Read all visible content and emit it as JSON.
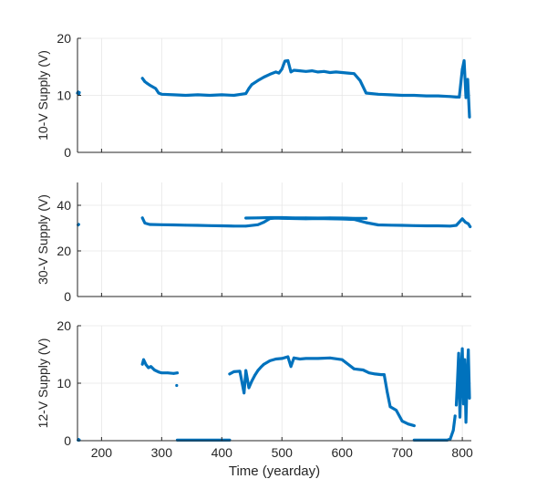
{
  "colors": {
    "series": "#0072BD",
    "axis": "#262626",
    "grid": "#e6e6e6",
    "background": "#ffffff"
  },
  "chart_data": [
    {
      "type": "scatter",
      "ylabel": "10-V Supply (V)",
      "xlabel": "",
      "xlim": [
        160,
        815
      ],
      "ylim": [
        0,
        20
      ],
      "xticks": [
        200,
        300,
        400,
        500,
        600,
        700,
        800
      ],
      "xtick_labels_visible": false,
      "yticks": [
        0,
        10,
        20
      ],
      "grid": true,
      "series": [
        {
          "x": [
            160,
            161,
            162,
            163
          ],
          "y": [
            10.4,
            10.6,
            10.2,
            10.5
          ]
        },
        {
          "x": [
            268,
            272,
            276,
            280,
            285,
            290,
            295,
            300,
            320,
            340,
            360,
            380,
            400,
            420,
            440,
            445,
            450,
            460,
            470,
            480,
            490,
            495,
            500,
            505,
            510,
            515,
            520,
            530,
            540,
            550,
            560,
            570,
            580,
            590,
            600,
            610,
            620,
            630,
            640,
            660,
            680,
            700,
            720,
            740,
            760,
            780,
            790,
            795,
            800,
            803,
            806,
            809,
            812
          ],
          "y": [
            13.0,
            12.4,
            12.1,
            11.8,
            11.5,
            11.2,
            10.4,
            10.2,
            10.1,
            10.0,
            10.1,
            10.0,
            10.1,
            10.0,
            10.3,
            11.2,
            11.9,
            12.6,
            13.2,
            13.7,
            14.1,
            13.9,
            14.6,
            16.0,
            16.1,
            14.1,
            14.4,
            14.3,
            14.2,
            14.3,
            14.1,
            14.2,
            14.0,
            14.1,
            14.0,
            13.9,
            13.8,
            12.6,
            10.4,
            10.2,
            10.1,
            10.0,
            10.0,
            9.9,
            9.9,
            9.8,
            9.7,
            9.7,
            14.6,
            16.1,
            9.6,
            12.8,
            6.2
          ]
        }
      ]
    },
    {
      "type": "scatter",
      "ylabel": "30-V Supply (V)",
      "xlabel": "",
      "xlim": [
        160,
        815
      ],
      "ylim": [
        0,
        50
      ],
      "xticks": [
        200,
        300,
        400,
        500,
        600,
        700,
        800
      ],
      "xtick_labels_visible": false,
      "yticks": [
        0,
        20,
        40
      ],
      "grid": true,
      "series": [
        {
          "x": [
            161,
            162
          ],
          "y": [
            31.4,
            31.6
          ]
        },
        {
          "x": [
            268,
            272,
            280,
            300,
            320,
            340,
            360,
            380,
            400,
            420,
            440,
            460,
            470,
            480,
            490,
            500,
            520,
            540,
            560,
            580,
            600,
            620,
            640,
            660,
            680,
            700,
            720,
            740,
            760,
            780,
            790,
            800,
            805,
            810,
            813
          ],
          "y": [
            34.5,
            32.2,
            31.6,
            31.5,
            31.4,
            31.3,
            31.2,
            31.1,
            31.0,
            30.9,
            30.9,
            31.5,
            32.6,
            34.2,
            34.4,
            34.3,
            34.2,
            34.1,
            34.2,
            34.1,
            34.0,
            33.8,
            32.4,
            31.4,
            31.3,
            31.2,
            31.1,
            31.0,
            31.0,
            30.9,
            31.2,
            34.1,
            32.6,
            31.9,
            30.6
          ]
        },
        {
          "x": [
            440,
            460,
            480,
            500,
            520,
            540,
            560,
            580,
            600,
            620,
            640
          ],
          "y": [
            34.4,
            34.5,
            34.6,
            34.6,
            34.5,
            34.5,
            34.4,
            34.5,
            34.4,
            34.3,
            34.3
          ]
        }
      ]
    },
    {
      "type": "scatter",
      "ylabel": "12-V Supply (V)",
      "xlabel": "Time (yearday)",
      "xlim": [
        160,
        815
      ],
      "ylim": [
        0,
        20
      ],
      "xticks": [
        200,
        300,
        400,
        500,
        600,
        700,
        800
      ],
      "xtick_labels_visible": true,
      "yticks": [
        0,
        10,
        20
      ],
      "grid": true,
      "series": [
        {
          "x": [
            161,
            162,
            163
          ],
          "y": [
            0.1,
            0.2,
            0.1
          ]
        },
        {
          "x": [
            268,
            270,
            274,
            278,
            282,
            288,
            292,
            296,
            300,
            310,
            320,
            326
          ],
          "y": [
            13.3,
            14.1,
            13.2,
            12.7,
            12.9,
            12.3,
            12.1,
            11.9,
            11.8,
            11.8,
            11.7,
            11.8
          ]
        },
        {
          "x": [
            325
          ],
          "y": [
            9.6
          ]
        },
        {
          "x": [
            326,
            340,
            360,
            380,
            400,
            413
          ],
          "y": [
            0.1,
            0.1,
            0.1,
            0.1,
            0.1,
            0.1
          ]
        },
        {
          "x": [
            413,
            420,
            430,
            437,
            440,
            445,
            450,
            455,
            460,
            465,
            470,
            480,
            490,
            500,
            510,
            515,
            520,
            530,
            540,
            560,
            580,
            600,
            620,
            635,
            645,
            655,
            665,
            670,
            675,
            680,
            690,
            700,
            710,
            720
          ],
          "y": [
            11.6,
            12.0,
            12.1,
            8.3,
            12.2,
            9.2,
            10.4,
            11.4,
            12.2,
            12.8,
            13.3,
            13.9,
            14.2,
            14.3,
            14.6,
            12.9,
            14.4,
            14.2,
            14.3,
            14.3,
            14.4,
            14.1,
            12.5,
            12.3,
            11.8,
            11.6,
            11.5,
            11.5,
            8.5,
            5.9,
            5.3,
            3.4,
            2.9,
            2.6
          ]
        },
        {
          "x": [
            720,
            740,
            760,
            775,
            780,
            785,
            788
          ],
          "y": [
            0.1,
            0.1,
            0.1,
            0.1,
            0.3,
            1.8,
            4.3
          ]
        },
        {
          "x": [
            790,
            792,
            794,
            796,
            798,
            800,
            802,
            804,
            806,
            808,
            810,
            812
          ],
          "y": [
            6.2,
            10.3,
            15.2,
            4.1,
            12.3,
            16.0,
            6.4,
            14.1,
            3.2,
            11.0,
            15.8,
            7.4
          ]
        }
      ]
    }
  ]
}
